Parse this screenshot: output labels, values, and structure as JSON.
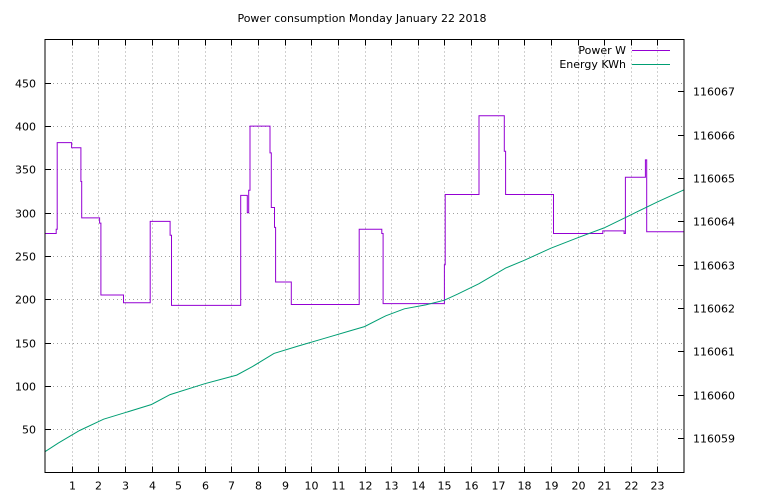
{
  "chart_data": {
    "type": "line",
    "title": "Power consumption Monday January 22 2018",
    "xlabel": "",
    "ylabel": "",
    "y2label": "",
    "xlim": [
      0,
      24
    ],
    "ylim": [
      0,
      500
    ],
    "y2lim": [
      116058.2,
      116068.2
    ],
    "x_ticks": [
      1,
      2,
      3,
      4,
      5,
      6,
      7,
      8,
      9,
      10,
      11,
      12,
      13,
      14,
      15,
      16,
      17,
      18,
      19,
      20,
      21,
      22,
      23
    ],
    "y_ticks": [
      50,
      100,
      150,
      200,
      250,
      300,
      350,
      400,
      450
    ],
    "y2_ticks": [
      116059,
      116060,
      116061,
      116062,
      116063,
      116064,
      116065,
      116066,
      116067
    ],
    "grid": true,
    "legend_position": "top-right",
    "series": [
      {
        "name": "Power W",
        "axis": "left",
        "color": "#9400d3",
        "points": [
          [
            0,
            276
          ],
          [
            0.42,
            276
          ],
          [
            0.42,
            281
          ],
          [
            0.46,
            281
          ],
          [
            0.46,
            381
          ],
          [
            1.0,
            381
          ],
          [
            1.0,
            375
          ],
          [
            1.35,
            375
          ],
          [
            1.35,
            336
          ],
          [
            1.38,
            336
          ],
          [
            1.38,
            294
          ],
          [
            2.05,
            294
          ],
          [
            2.05,
            288
          ],
          [
            2.1,
            288
          ],
          [
            2.1,
            205
          ],
          [
            2.95,
            205
          ],
          [
            2.95,
            196
          ],
          [
            3.95,
            196
          ],
          [
            3.95,
            290
          ],
          [
            4.7,
            290
          ],
          [
            4.7,
            274
          ],
          [
            4.75,
            274
          ],
          [
            4.75,
            193
          ],
          [
            7.35,
            193
          ],
          [
            7.35,
            320
          ],
          [
            7.6,
            320
          ],
          [
            7.6,
            300
          ],
          [
            7.65,
            300
          ],
          [
            7.65,
            326
          ],
          [
            7.7,
            326
          ],
          [
            7.7,
            400
          ],
          [
            8.45,
            400
          ],
          [
            8.45,
            369
          ],
          [
            8.5,
            369
          ],
          [
            8.5,
            306
          ],
          [
            8.62,
            306
          ],
          [
            8.62,
            283
          ],
          [
            8.66,
            283
          ],
          [
            8.66,
            220
          ],
          [
            9.25,
            220
          ],
          [
            9.25,
            194
          ],
          [
            11.8,
            194
          ],
          [
            11.8,
            281
          ],
          [
            12.65,
            281
          ],
          [
            12.65,
            276
          ],
          [
            12.7,
            276
          ],
          [
            12.7,
            195
          ],
          [
            15.0,
            195
          ],
          [
            15.0,
            240
          ],
          [
            15.03,
            240
          ],
          [
            15.03,
            321
          ],
          [
            16.3,
            321
          ],
          [
            16.3,
            412
          ],
          [
            17.25,
            412
          ],
          [
            17.25,
            371
          ],
          [
            17.3,
            371
          ],
          [
            17.3,
            321
          ],
          [
            19.1,
            321
          ],
          [
            19.1,
            276
          ],
          [
            20.95,
            276
          ],
          [
            20.95,
            279
          ],
          [
            21.75,
            279
          ],
          [
            21.75,
            276
          ],
          [
            21.8,
            276
          ],
          [
            21.8,
            341
          ],
          [
            22.55,
            341
          ],
          [
            22.55,
            361
          ],
          [
            22.6,
            361
          ],
          [
            22.6,
            278
          ],
          [
            24,
            278
          ]
        ]
      },
      {
        "name": "Energy KWh",
        "axis": "right",
        "color": "#009e73",
        "points": [
          [
            0,
            116058.68
          ],
          [
            0.5,
            116058.88
          ],
          [
            1.3,
            116059.17
          ],
          [
            2.2,
            116059.43
          ],
          [
            3.0,
            116059.58
          ],
          [
            4.0,
            116059.77
          ],
          [
            4.7,
            116060.0
          ],
          [
            6.0,
            116060.25
          ],
          [
            7.2,
            116060.45
          ],
          [
            7.8,
            116060.65
          ],
          [
            8.6,
            116060.95
          ],
          [
            9.5,
            116061.12
          ],
          [
            10.5,
            116061.3
          ],
          [
            11.5,
            116061.48
          ],
          [
            12.0,
            116061.57
          ],
          [
            12.8,
            116061.82
          ],
          [
            13.5,
            116061.98
          ],
          [
            14.3,
            116062.07
          ],
          [
            15.0,
            116062.18
          ],
          [
            15.5,
            116062.32
          ],
          [
            16.3,
            116062.56
          ],
          [
            17.3,
            116062.92
          ],
          [
            18.0,
            116063.1
          ],
          [
            19.0,
            116063.38
          ],
          [
            20.0,
            116063.62
          ],
          [
            21.0,
            116063.85
          ],
          [
            22.0,
            116064.15
          ],
          [
            23.0,
            116064.45
          ],
          [
            24.0,
            116064.73
          ]
        ]
      }
    ]
  }
}
